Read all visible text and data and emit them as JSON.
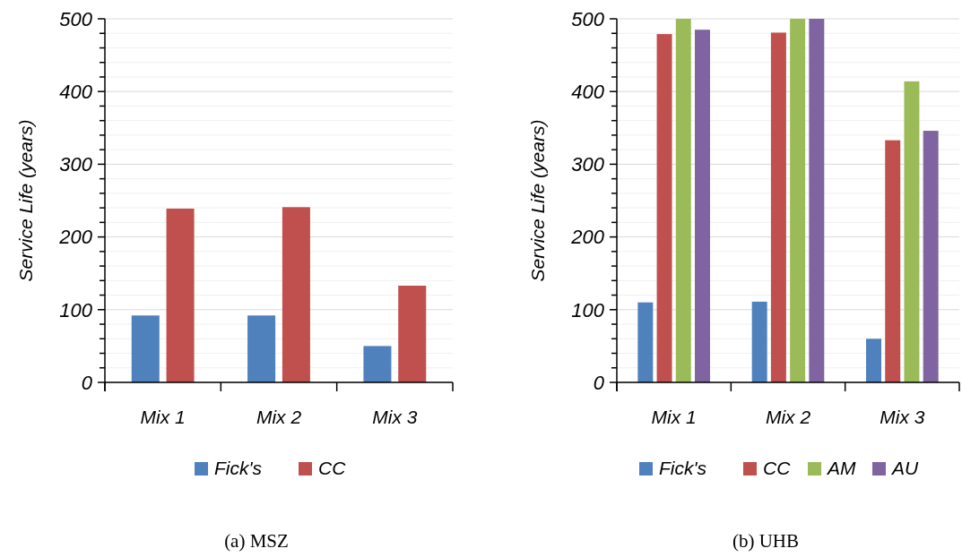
{
  "chart_data": [
    {
      "type": "bar",
      "ylabel": "Service Life (years)",
      "categories": [
        "Mix 1",
        "Mix 2",
        "Mix 3"
      ],
      "series": [
        {
          "name": "Fick's",
          "color": "#4f81bd",
          "values": [
            92,
            92,
            50
          ]
        },
        {
          "name": "CC",
          "color": "#c0504d",
          "values": [
            239,
            241,
            133
          ]
        }
      ],
      "ylim": [
        0,
        500
      ],
      "yticks": [
        0,
        {
          "value": 20,
          "label": null
        },
        {
          "value": 40,
          "label": null
        },
        {
          "value": 60,
          "label": null
        },
        {
          "value": 80,
          "label": null
        },
        100,
        {
          "value": 120,
          "label": null
        },
        {
          "value": 140,
          "label": null
        },
        {
          "value": 160,
          "label": null
        },
        {
          "value": 180,
          "label": null
        },
        200,
        {
          "value": 220,
          "label": null
        },
        {
          "value": 240,
          "label": null
        },
        {
          "value": 260,
          "label": null
        },
        {
          "value": 280,
          "label": null
        },
        300,
        {
          "value": 320,
          "label": null
        },
        {
          "value": 340,
          "label": null
        },
        {
          "value": 360,
          "label": null
        },
        {
          "value": 380,
          "label": null
        },
        400,
        {
          "value": 420,
          "label": null
        },
        {
          "value": 440,
          "label": null
        },
        {
          "value": 460,
          "label": null
        },
        {
          "value": 480,
          "label": null
        },
        500
      ],
      "grid": "y",
      "legend": "bottom",
      "annotations": [
        "(a) MSZ"
      ]
    },
    {
      "type": "bar",
      "ylabel": "Service Life (years)",
      "categories": [
        "Mix 1",
        "Mix 2",
        "Mix 3"
      ],
      "series": [
        {
          "name": "Fick's",
          "color": "#4f81bd",
          "values": [
            110,
            111,
            60
          ]
        },
        {
          "name": "CC",
          "color": "#c0504d",
          "values": [
            479,
            481,
            333
          ]
        },
        {
          "name": "AM",
          "color": "#9bbb59",
          "values": [
            500,
            500,
            414
          ]
        },
        {
          "name": "AU",
          "color": "#8064a2",
          "values": [
            485,
            500,
            346
          ]
        }
      ],
      "ylim": [
        0,
        500
      ],
      "yticks": [
        0,
        {
          "value": 20,
          "label": null
        },
        {
          "value": 40,
          "label": null
        },
        {
          "value": 60,
          "label": null
        },
        {
          "value": 80,
          "label": null
        },
        100,
        {
          "value": 120,
          "label": null
        },
        {
          "value": 140,
          "label": null
        },
        {
          "value": 160,
          "label": null
        },
        {
          "value": 180,
          "label": null
        },
        200,
        {
          "value": 220,
          "label": null
        },
        {
          "value": 240,
          "label": null
        },
        {
          "value": 260,
          "label": null
        },
        {
          "value": 280,
          "label": null
        },
        300,
        {
          "value": 320,
          "label": null
        },
        {
          "value": 340,
          "label": null
        },
        {
          "value": 360,
          "label": null
        },
        {
          "value": 380,
          "label": null
        },
        400,
        {
          "value": 420,
          "label": null
        },
        {
          "value": 440,
          "label": null
        },
        {
          "value": 460,
          "label": null
        },
        {
          "value": 480,
          "label": null
        },
        500
      ],
      "grid": "y",
      "legend": "bottom",
      "annotations": [
        "(b) UHB"
      ]
    }
  ]
}
